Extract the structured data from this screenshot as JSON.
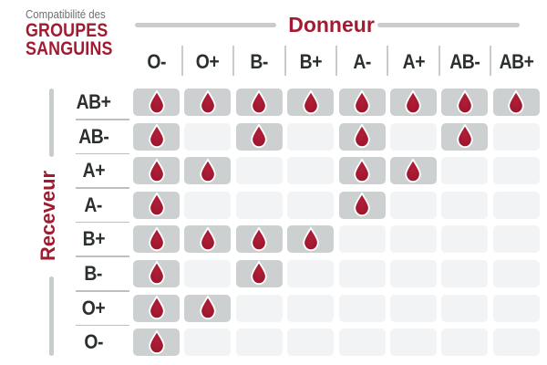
{
  "brand": {
    "subtitle": "Compatibilité des",
    "title_line1": "GROUPES",
    "title_line2": "SANGUINS"
  },
  "axes": {
    "donor_label": "Donneur",
    "receiver_label": "Receveur"
  },
  "icons": {
    "compatible_cell_icon": "blood-drop-icon"
  },
  "colors": {
    "accent_red": "#A21C31",
    "drop_red": "#A01830",
    "drop_red_dark": "#8C1426",
    "drop_red_light": "#B21E37",
    "cell_filled_gray": "#CDD0D0",
    "cell_empty_gray": "#F2F3F4",
    "axis_line_gray": "#C9CCCC",
    "separator_gray": "#C8CBCB",
    "label_dark": "#2B2F30",
    "subtitle_gray": "#6C7072",
    "background": "#FFFFFF"
  },
  "chart_data": {
    "type": "heatmap",
    "title": "Compatibilité des groupes sanguins",
    "x_axis_label": "Donneur",
    "y_axis_label": "Receveur",
    "columns": [
      "O-",
      "O+",
      "B-",
      "B+",
      "A-",
      "A+",
      "AB-",
      "AB+"
    ],
    "rows": [
      {
        "receiver": "AB+",
        "compatible_with": [
          1,
          1,
          1,
          1,
          1,
          1,
          1,
          1
        ]
      },
      {
        "receiver": "AB-",
        "compatible_with": [
          1,
          0,
          1,
          0,
          1,
          0,
          1,
          0
        ]
      },
      {
        "receiver": "A+",
        "compatible_with": [
          1,
          1,
          0,
          0,
          1,
          1,
          0,
          0
        ]
      },
      {
        "receiver": "A-",
        "compatible_with": [
          1,
          0,
          0,
          0,
          1,
          0,
          0,
          0
        ]
      },
      {
        "receiver": "B+",
        "compatible_with": [
          1,
          1,
          1,
          1,
          0,
          0,
          0,
          0
        ]
      },
      {
        "receiver": "B-",
        "compatible_with": [
          1,
          0,
          1,
          0,
          0,
          0,
          0,
          0
        ]
      },
      {
        "receiver": "O+",
        "compatible_with": [
          1,
          1,
          0,
          0,
          0,
          0,
          0,
          0
        ]
      },
      {
        "receiver": "O-",
        "compatible_with": [
          1,
          0,
          0,
          0,
          0,
          0,
          0,
          0
        ]
      }
    ]
  }
}
